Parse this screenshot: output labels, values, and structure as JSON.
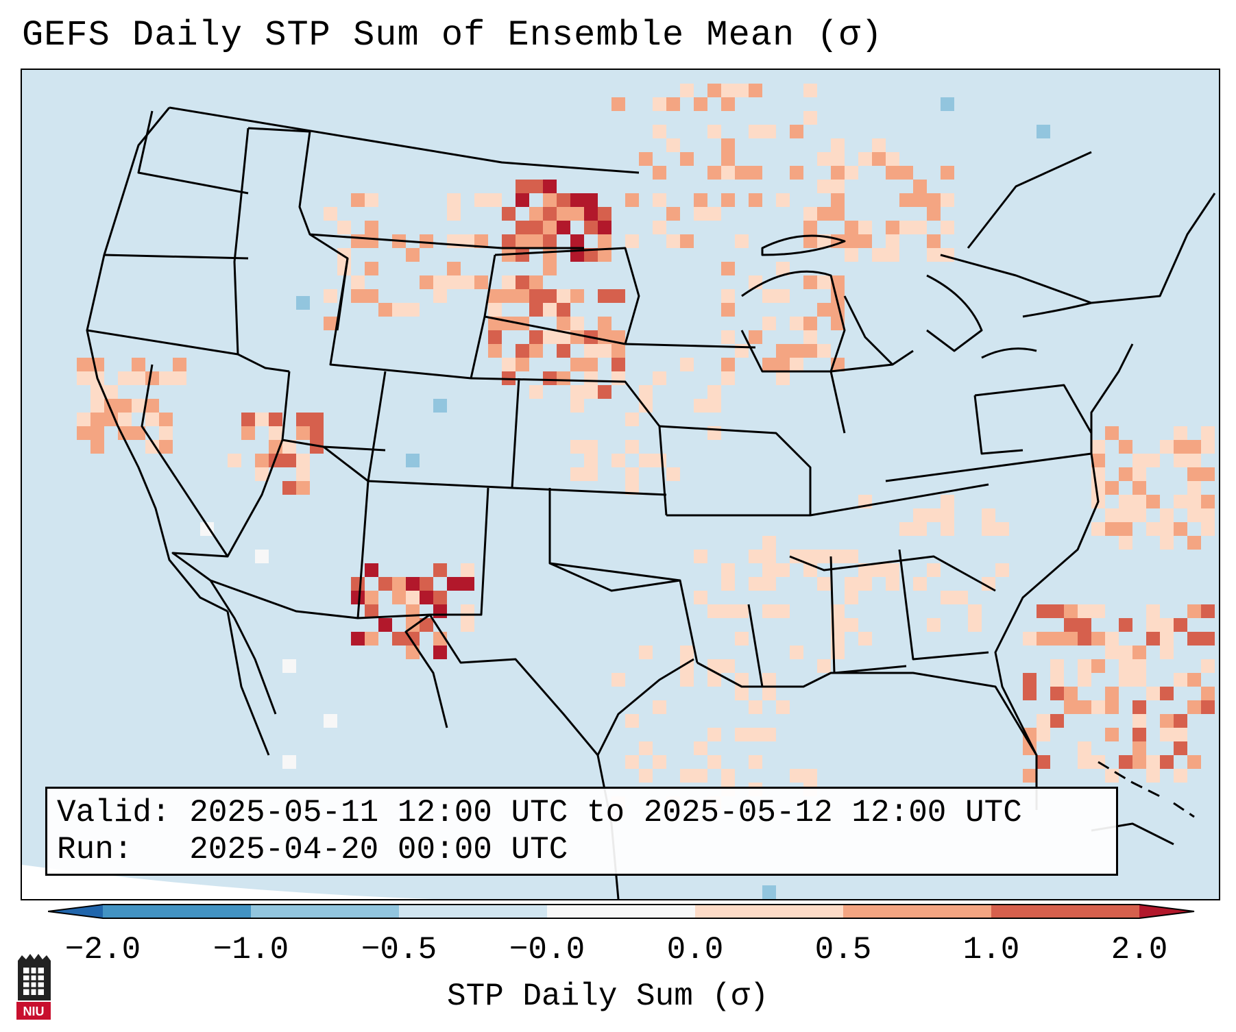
{
  "title": "GEFS Daily STP Sum of Ensemble Mean (σ)",
  "info": {
    "valid_line": "Valid: 2025-05-11 12:00 UTC to 2025-05-12 12:00 UTC",
    "run_line": "Run:   2025-04-20 00:00 UTC"
  },
  "colorbar": {
    "label": "STP Daily Sum (σ)",
    "ticks": [
      "−2.0",
      "−1.0",
      "−0.5",
      "−0.0",
      "0.0",
      "0.5",
      "1.0",
      "2.0"
    ],
    "colors": [
      "#2166ac",
      "#4393c3",
      "#92c5de",
      "#d1e5f0",
      "#f7f7f7",
      "#fddbc7",
      "#f4a582",
      "#d6604d",
      "#b2182b"
    ]
  },
  "logo": {
    "text": "NIU",
    "icon": "niu-university-logo-icon"
  },
  "map": {
    "region": "Contiguous United States",
    "background_category_color": "#d1e5f0"
  }
}
